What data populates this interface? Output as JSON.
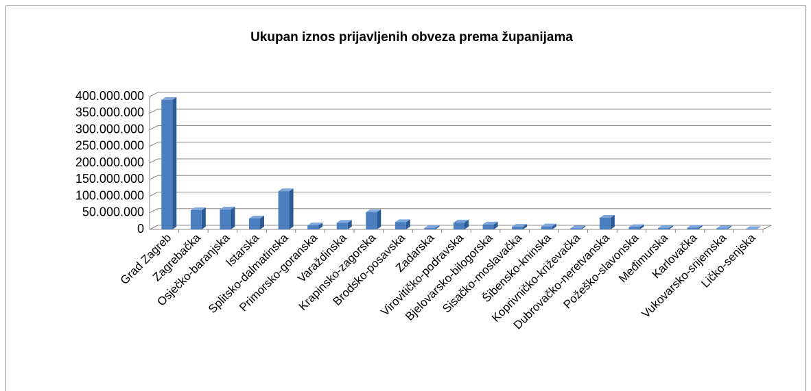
{
  "chart_data": {
    "type": "bar",
    "title": "Ukupan  iznos prijavljenih obveza prema županijama",
    "categories": [
      "Grad Zagreb",
      "Zagrebačka",
      "Osječko-baranjska",
      "Istarska",
      "Splitsko-dalmatinska",
      "Primorsko-goranska",
      "Varaždinska",
      "Krapinsko-zagorska",
      "Brodsko-posavska",
      "Zadarska",
      "Virovitičko-podravska",
      "Bjelovarsko-bilogorska",
      "Sisačko-moslavačka",
      "Šibensko-kninska",
      "Koprivničko-križevačka",
      "Dubrovačko-neretvanska",
      "Požeško-slavonska",
      "Međimurska",
      "Karlovačka",
      "Vukovarsko-srijemska",
      "Ličko-senjska"
    ],
    "values": [
      390000000,
      58000000,
      60000000,
      33000000,
      115000000,
      12000000,
      20000000,
      52000000,
      22000000,
      4000000,
      21000000,
      15000000,
      8000000,
      9000000,
      3000000,
      35000000,
      7000000,
      4000000,
      5000000,
      3000000,
      1000000
    ],
    "color": "#4a7ebf",
    "ylim": [
      0,
      400000000
    ],
    "yticks": [
      0,
      {
        "value": 50000000,
        "label": "50.000.000"
      },
      {
        "value": 100000000,
        "label": "100.000.000"
      },
      {
        "value": 150000000,
        "label": "150.000.000"
      },
      {
        "value": 200000000,
        "label": "200.000.000"
      },
      {
        "value": 250000000,
        "label": "250.000.000"
      },
      {
        "value": 300000000,
        "label": "300.000.000"
      },
      {
        "value": 350000000,
        "label": "350.000.000"
      },
      {
        "value": 400000000,
        "label": "400.000.000"
      }
    ],
    "grid": true
  }
}
